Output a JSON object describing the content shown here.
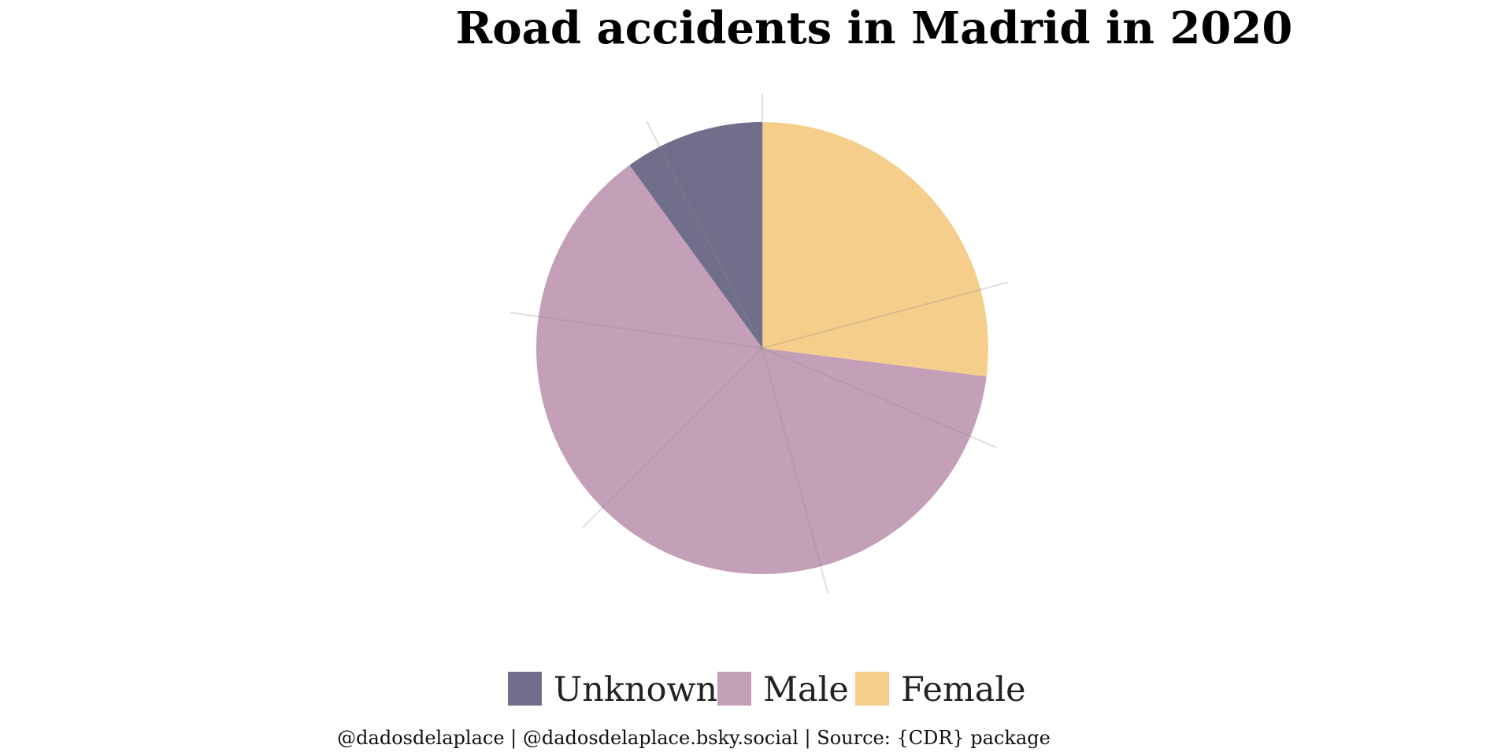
{
  "chart_data": {
    "type": "pie",
    "title": "Road accidents in Madrid in 2020",
    "categories": [
      "Unknown",
      "Male",
      "Female"
    ],
    "values": [
      10,
      63,
      27
    ],
    "colors": {
      "Unknown": "#716e8c",
      "Male": "#c4a0b8",
      "Female": "#f6ce8c"
    },
    "legend_position": "bottom",
    "caption": "@dadosdelaplace | @dadosdelaplace.bsky.social | Source: {CDR} package"
  }
}
